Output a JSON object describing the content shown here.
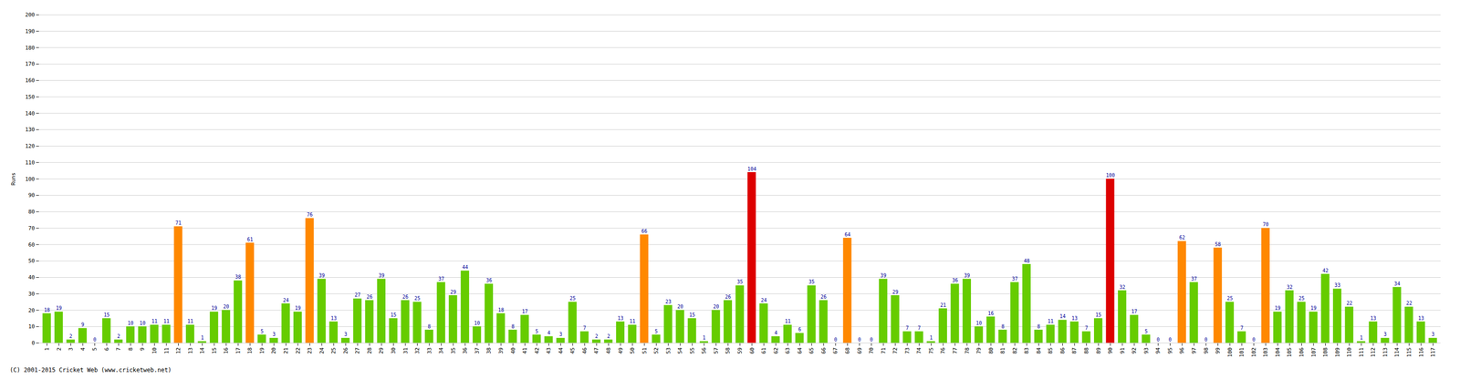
{
  "chart_data": {
    "type": "bar",
    "ylabel": "Runs",
    "annotations": [
      "(C) 2001-2015 Cricket Web (www.cricketweb.net)"
    ],
    "categories": [
      "1",
      "2",
      "3",
      "4",
      "5",
      "6",
      "7",
      "8",
      "9",
      "10",
      "11",
      "12",
      "13",
      "14",
      "15",
      "16",
      "17",
      "18",
      "19",
      "20",
      "21",
      "22",
      "23",
      "24",
      "25",
      "26",
      "27",
      "28",
      "29",
      "30",
      "31",
      "32",
      "33",
      "34",
      "35",
      "36",
      "37",
      "38",
      "39",
      "40",
      "41",
      "42",
      "43",
      "44",
      "45",
      "46",
      "47",
      "48",
      "49",
      "50",
      "51",
      "52",
      "53",
      "54",
      "55",
      "56",
      "57",
      "58",
      "59",
      "60",
      "61",
      "62",
      "63",
      "64",
      "65",
      "66",
      "67",
      "68",
      "69",
      "70",
      "71",
      "72",
      "73",
      "74",
      "75",
      "76",
      "77",
      "78",
      "79",
      "80",
      "81",
      "82",
      "83",
      "84",
      "85",
      "86",
      "87",
      "88",
      "89",
      "90",
      "91",
      "92",
      "93",
      "94",
      "95",
      "96",
      "97",
      "98",
      "99",
      "100",
      "101",
      "102",
      "103",
      "104",
      "105",
      "106",
      "107",
      "108",
      "109",
      "110",
      "111",
      "112",
      "113",
      "114",
      "115",
      "116",
      "117"
    ],
    "values": [
      18,
      19,
      2,
      9,
      0,
      15,
      2,
      10,
      10,
      11,
      11,
      71,
      11,
      1,
      19,
      20,
      38,
      61,
      5,
      3,
      24,
      19,
      76,
      39,
      13,
      3,
      27,
      26,
      39,
      15,
      26,
      25,
      8,
      37,
      29,
      44,
      10,
      36,
      18,
      8,
      17,
      5,
      4,
      3,
      25,
      7,
      2,
      2,
      13,
      11,
      66,
      5,
      23,
      20,
      15,
      1,
      20,
      26,
      35,
      104,
      24,
      4,
      11,
      6,
      35,
      26,
      0,
      64,
      0,
      0,
      39,
      29,
      7,
      7,
      1,
      21,
      36,
      39,
      10,
      16,
      8,
      37,
      48,
      8,
      11,
      14,
      13,
      7,
      15,
      100,
      32,
      17,
      5,
      0,
      0,
      62,
      37,
      0,
      58,
      25,
      7,
      0,
      70,
      19,
      32,
      25,
      19,
      42,
      33,
      22,
      1,
      13,
      3,
      34,
      22,
      13,
      3
    ],
    "colors": [
      "#66cc00",
      "#66cc00",
      "#66cc00",
      "#66cc00",
      "#66cc00",
      "#66cc00",
      "#66cc00",
      "#66cc00",
      "#66cc00",
      "#66cc00",
      "#66cc00",
      "#ff8800",
      "#66cc00",
      "#66cc00",
      "#66cc00",
      "#66cc00",
      "#66cc00",
      "#ff8800",
      "#66cc00",
      "#66cc00",
      "#66cc00",
      "#66cc00",
      "#ff8800",
      "#66cc00",
      "#66cc00",
      "#66cc00",
      "#66cc00",
      "#66cc00",
      "#66cc00",
      "#66cc00",
      "#66cc00",
      "#66cc00",
      "#66cc00",
      "#66cc00",
      "#66cc00",
      "#66cc00",
      "#66cc00",
      "#66cc00",
      "#66cc00",
      "#66cc00",
      "#66cc00",
      "#66cc00",
      "#66cc00",
      "#66cc00",
      "#66cc00",
      "#66cc00",
      "#66cc00",
      "#66cc00",
      "#66cc00",
      "#66cc00",
      "#ff8800",
      "#66cc00",
      "#66cc00",
      "#66cc00",
      "#66cc00",
      "#66cc00",
      "#66cc00",
      "#66cc00",
      "#66cc00",
      "#dd0000",
      "#66cc00",
      "#66cc00",
      "#66cc00",
      "#66cc00",
      "#66cc00",
      "#66cc00",
      "#66cc00",
      "#ff8800",
      "#66cc00",
      "#66cc00",
      "#66cc00",
      "#66cc00",
      "#66cc00",
      "#66cc00",
      "#66cc00",
      "#66cc00",
      "#66cc00",
      "#66cc00",
      "#66cc00",
      "#66cc00",
      "#66cc00",
      "#66cc00",
      "#66cc00",
      "#66cc00",
      "#66cc00",
      "#66cc00",
      "#66cc00",
      "#66cc00",
      "#66cc00",
      "#dd0000",
      "#66cc00",
      "#66cc00",
      "#66cc00",
      "#66cc00",
      "#66cc00",
      "#ff8800",
      "#66cc00",
      "#66cc00",
      "#ff8800",
      "#66cc00",
      "#66cc00",
      "#66cc00",
      "#ff8800",
      "#66cc00",
      "#66cc00",
      "#66cc00",
      "#66cc00",
      "#66cc00",
      "#66cc00",
      "#66cc00",
      "#66cc00",
      "#66cc00",
      "#66cc00",
      "#66cc00",
      "#66cc00",
      "#66cc00",
      "#66cc00"
    ],
    "ylim": [
      0,
      200
    ],
    "yticks": [
      0,
      10,
      20,
      30,
      40,
      50,
      60,
      70,
      80,
      90,
      100,
      110,
      120,
      130,
      140,
      150,
      160,
      170,
      180,
      190,
      200
    ],
    "grid": true,
    "data_labels": true
  }
}
